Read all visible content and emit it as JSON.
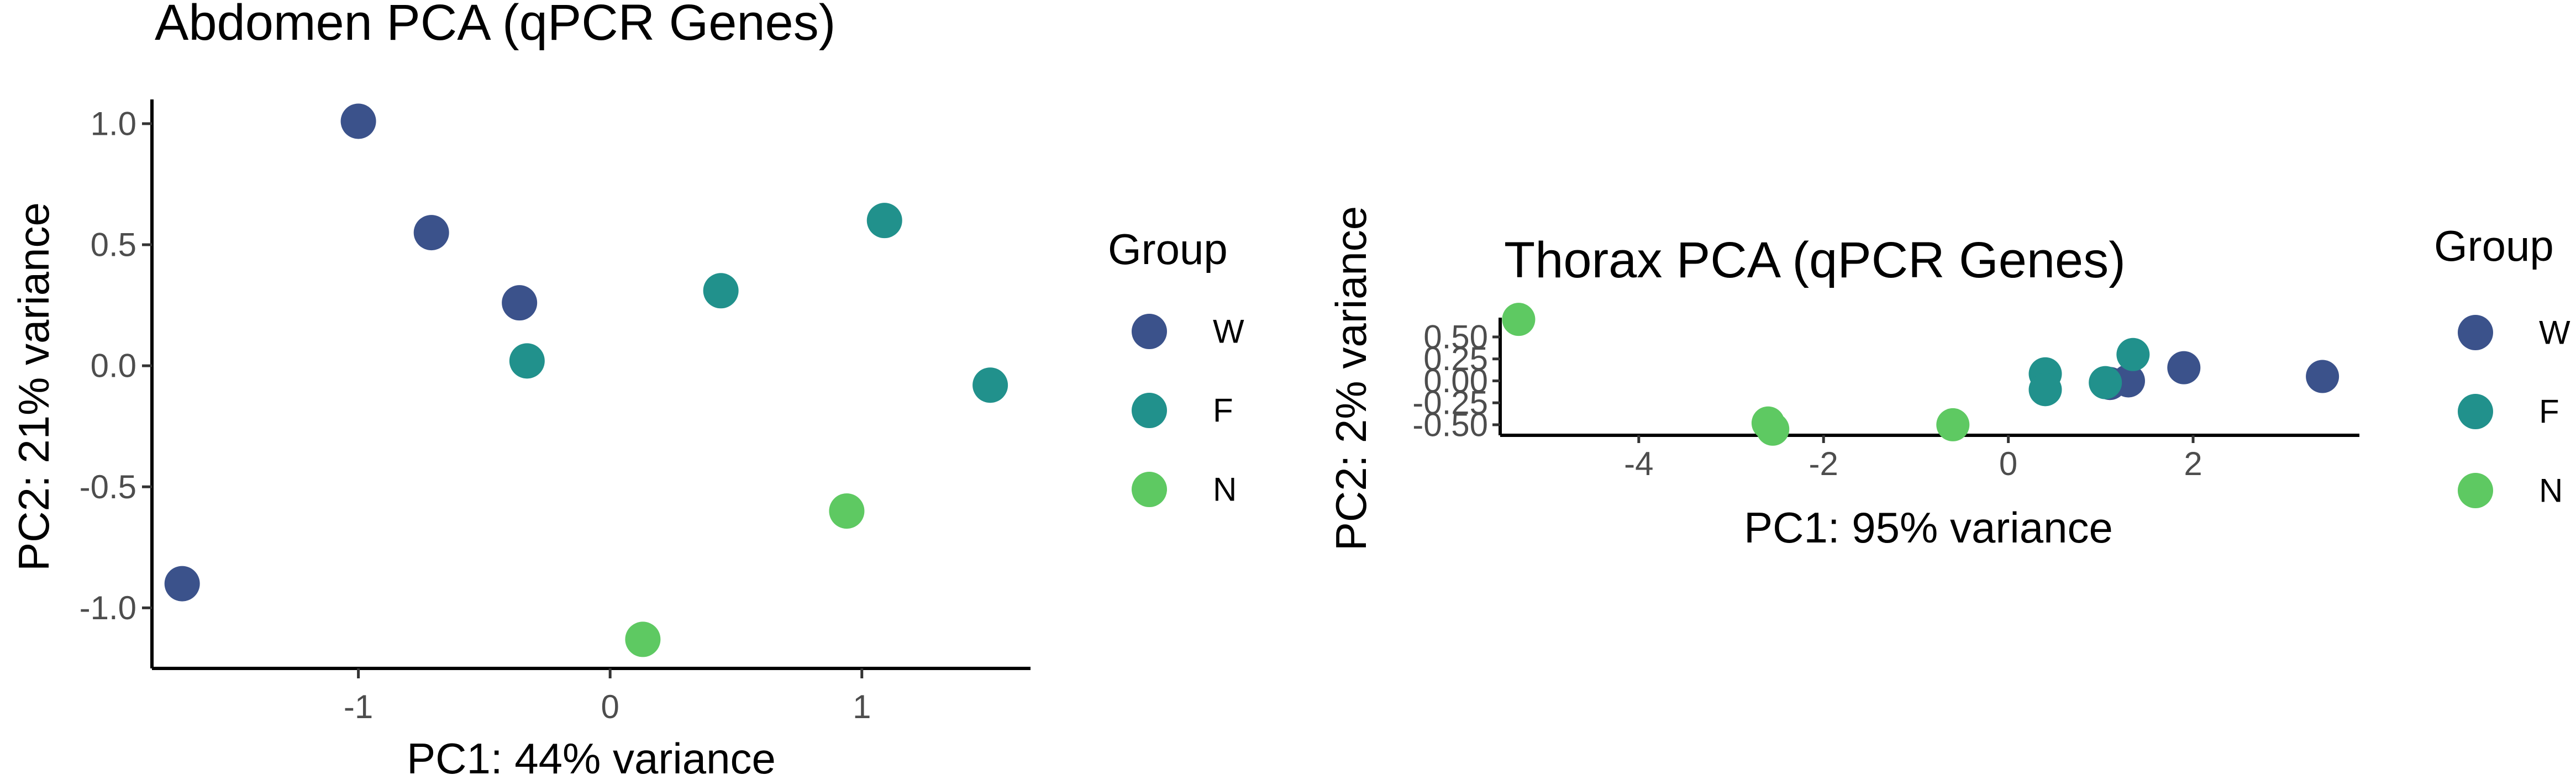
{
  "chart_data": [
    {
      "type": "scatter",
      "title": "Abdomen PCA (qPCR Genes)",
      "xlabel": "PC1: 44% variance",
      "ylabel": "PC2: 21% variance",
      "xlim": [
        -1.82,
        1.67
      ],
      "ylim": [
        -1.25,
        1.1
      ],
      "xticks": [
        -1,
        0,
        1
      ],
      "xtick_labels": [
        "-1",
        "0",
        "1"
      ],
      "yticks": [
        -1.0,
        -0.5,
        0.0,
        0.5,
        1.0
      ],
      "ytick_labels": [
        "-1.0",
        "-0.5",
        "0.0",
        "0.5",
        "1.0"
      ],
      "grid": false,
      "legend": {
        "title": "Group",
        "placement": "right",
        "entries": [
          "W",
          "F",
          "N"
        ]
      },
      "series": [
        {
          "name": "W",
          "color": "#3b528b",
          "points": [
            [
              -1.0,
              1.01
            ],
            [
              -0.71,
              0.55
            ],
            [
              -0.36,
              0.26
            ],
            [
              -1.7,
              -0.9
            ]
          ]
        },
        {
          "name": "F",
          "color": "#21918c",
          "points": [
            [
              1.09,
              0.6
            ],
            [
              0.44,
              0.31
            ],
            [
              -0.33,
              0.02
            ],
            [
              1.51,
              -0.08
            ]
          ]
        },
        {
          "name": "N",
          "color": "#5ec962",
          "points": [
            [
              0.94,
              -0.6
            ],
            [
              0.13,
              -1.13
            ]
          ]
        }
      ]
    },
    {
      "type": "scatter",
      "title": "Thorax PCA (qPCR Genes)",
      "xlabel": "PC1: 95% variance",
      "ylabel": "PC2: 2% variance",
      "xlim": [
        -5.5,
        3.8
      ],
      "ylim": [
        -0.62,
        0.72
      ],
      "xticks": [
        -4,
        -2,
        0,
        2
      ],
      "xtick_labels": [
        "-4",
        "-2",
        "0",
        "2"
      ],
      "yticks": [
        -0.5,
        -0.25,
        0.0,
        0.25,
        0.5
      ],
      "ytick_labels": [
        "-0.50",
        "-0.25",
        "0.00",
        "0.25",
        "0.50"
      ],
      "grid": false,
      "legend": {
        "title": "Group",
        "placement": "right",
        "entries": [
          "W",
          "F",
          "N"
        ]
      },
      "series": [
        {
          "name": "W",
          "color": "#3b528b",
          "points": [
            [
              1.1,
              -0.03
            ],
            [
              1.3,
              0.0
            ],
            [
              1.9,
              0.15
            ],
            [
              3.4,
              0.05
            ]
          ]
        },
        {
          "name": "F",
          "color": "#21918c",
          "points": [
            [
              0.4,
              0.08
            ],
            [
              0.4,
              -0.1
            ],
            [
              1.05,
              -0.02
            ],
            [
              1.35,
              0.3
            ]
          ]
        },
        {
          "name": "N",
          "color": "#5ec962",
          "points": [
            [
              -5.3,
              0.7
            ],
            [
              -2.6,
              -0.48
            ],
            [
              -2.55,
              -0.55
            ],
            [
              -0.6,
              -0.5
            ]
          ]
        }
      ]
    }
  ]
}
